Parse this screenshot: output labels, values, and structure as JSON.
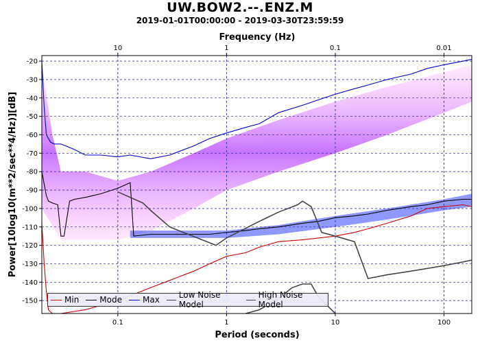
{
  "header": {
    "title": "UW.BOW2.--.ENZ.M",
    "subtitle": "2019-01-01T00:00:00 - 2019-03-30T23:59:59"
  },
  "colors": {
    "min": "#cc0000",
    "mode": "#000000",
    "max": "#0000cc",
    "low_noise": "#444444",
    "high_noise": "#444444",
    "grid": "#3333cc"
  },
  "chart_data": {
    "type": "line",
    "title": "UW.BOW2.--.ENZ.M",
    "subtitle": "2019-01-01T00:00:00 - 2019-03-30T23:59:59",
    "xlabel": "Period (seconds)",
    "x2label": "Frequency (Hz)",
    "ylabel": "Power[10log10(m**2/sec**4/Hz)][dB]",
    "xscale": "log",
    "xlim": [
      0.02,
      180
    ],
    "ylim": [
      -157,
      -17
    ],
    "x_ticks": [
      0.1,
      1,
      10,
      100
    ],
    "x_tick_labels": [
      "0.1",
      "1",
      "10",
      "100"
    ],
    "freq_ticks": [
      10,
      1,
      0.1,
      0.01
    ],
    "freq_tick_labels": [
      "10",
      "1",
      "0.1",
      "0.01"
    ],
    "y_ticks": [
      -20,
      -30,
      -40,
      -50,
      -60,
      -70,
      -80,
      -90,
      -100,
      -110,
      -120,
      -130,
      -140,
      -150
    ],
    "y_tick_labels": [
      "-20",
      "-30",
      "-40",
      "-50",
      "-60",
      "-70",
      "-80",
      "-90",
      "-100",
      "-110",
      "-120",
      "-130",
      "-140",
      "-150"
    ],
    "grid": true,
    "legend_position": "bottom-left",
    "legend": [
      "Min",
      "Mode",
      "Max",
      "Low Noise Model",
      "High Noise Model"
    ],
    "series": [
      {
        "name": "Max",
        "x": [
          0.02,
          0.021,
          0.022,
          0.024,
          0.026,
          0.03,
          0.04,
          0.05,
          0.07,
          0.1,
          0.13,
          0.2,
          0.3,
          0.5,
          0.7,
          1,
          1.5,
          2,
          3,
          5,
          7,
          10,
          15,
          20,
          30,
          50,
          70,
          100,
          150,
          180
        ],
        "y": [
          -20,
          -45,
          -60,
          -64,
          -65,
          -65,
          -68,
          -71,
          -71,
          -72,
          -71,
          -73,
          -71,
          -66,
          -62,
          -59,
          -56,
          -54,
          -48,
          -44,
          -41,
          -38,
          -35,
          -33,
          -30,
          -27,
          -24,
          -22,
          -20,
          -19
        ]
      },
      {
        "name": "Mode",
        "x": [
          0.02,
          0.022,
          0.023,
          0.025,
          0.028,
          0.03,
          0.032,
          0.036,
          0.04,
          0.05,
          0.07,
          0.1,
          0.13,
          0.14,
          0.2,
          0.3,
          0.5,
          0.7,
          1,
          1.5,
          2,
          3,
          5,
          7,
          10,
          15,
          20,
          30,
          50,
          70,
          100,
          150,
          180
        ],
        "y": [
          -80,
          -93,
          -96,
          -97,
          -98,
          -115,
          -115,
          -96,
          -95,
          -94,
          -92,
          -89,
          -86,
          -115,
          -114,
          -114,
          -114,
          -114,
          -113,
          -112,
          -111,
          -110,
          -108,
          -107,
          -105,
          -104,
          -103,
          -101,
          -99,
          -98,
          -96,
          -95,
          -95
        ]
      },
      {
        "name": "Min",
        "x": [
          0.02,
          0.021,
          0.022,
          0.023,
          0.025,
          0.03,
          0.05,
          0.1,
          0.2,
          0.3,
          0.5,
          0.7,
          1,
          1.5,
          2,
          3,
          5,
          7,
          10,
          15,
          20,
          30,
          50,
          70,
          100,
          150,
          180
        ],
        "y": [
          -108,
          -130,
          -145,
          -155,
          -157,
          -157,
          -155,
          -150,
          -143,
          -139,
          -134,
          -130,
          -126,
          -124,
          -121,
          -118,
          -117,
          -116,
          -115,
          -113,
          -111,
          -108,
          -104,
          -100,
          -99,
          -98,
          -99
        ]
      },
      {
        "name": "Low Noise Model",
        "x": [
          1.5,
          2,
          3,
          4,
          5,
          6,
          7,
          10
        ],
        "y": [
          -157,
          -155,
          -149,
          -143,
          -141,
          -141,
          -148,
          -157
        ]
      },
      {
        "name": "High Noise Model",
        "x": [
          0.1,
          0.17,
          0.2,
          0.3,
          0.4,
          0.8,
          1,
          2,
          3,
          4.5,
          5,
          6,
          7.5,
          10,
          15,
          20,
          30,
          50,
          100,
          150,
          180
        ],
        "y": [
          -91,
          -97,
          -101,
          -110,
          -113,
          -120,
          -116,
          -107,
          -102,
          -98,
          -96,
          -99,
          -113,
          -115,
          -118,
          -138,
          -136,
          -134,
          -131,
          -129,
          -128
        ]
      }
    ]
  }
}
